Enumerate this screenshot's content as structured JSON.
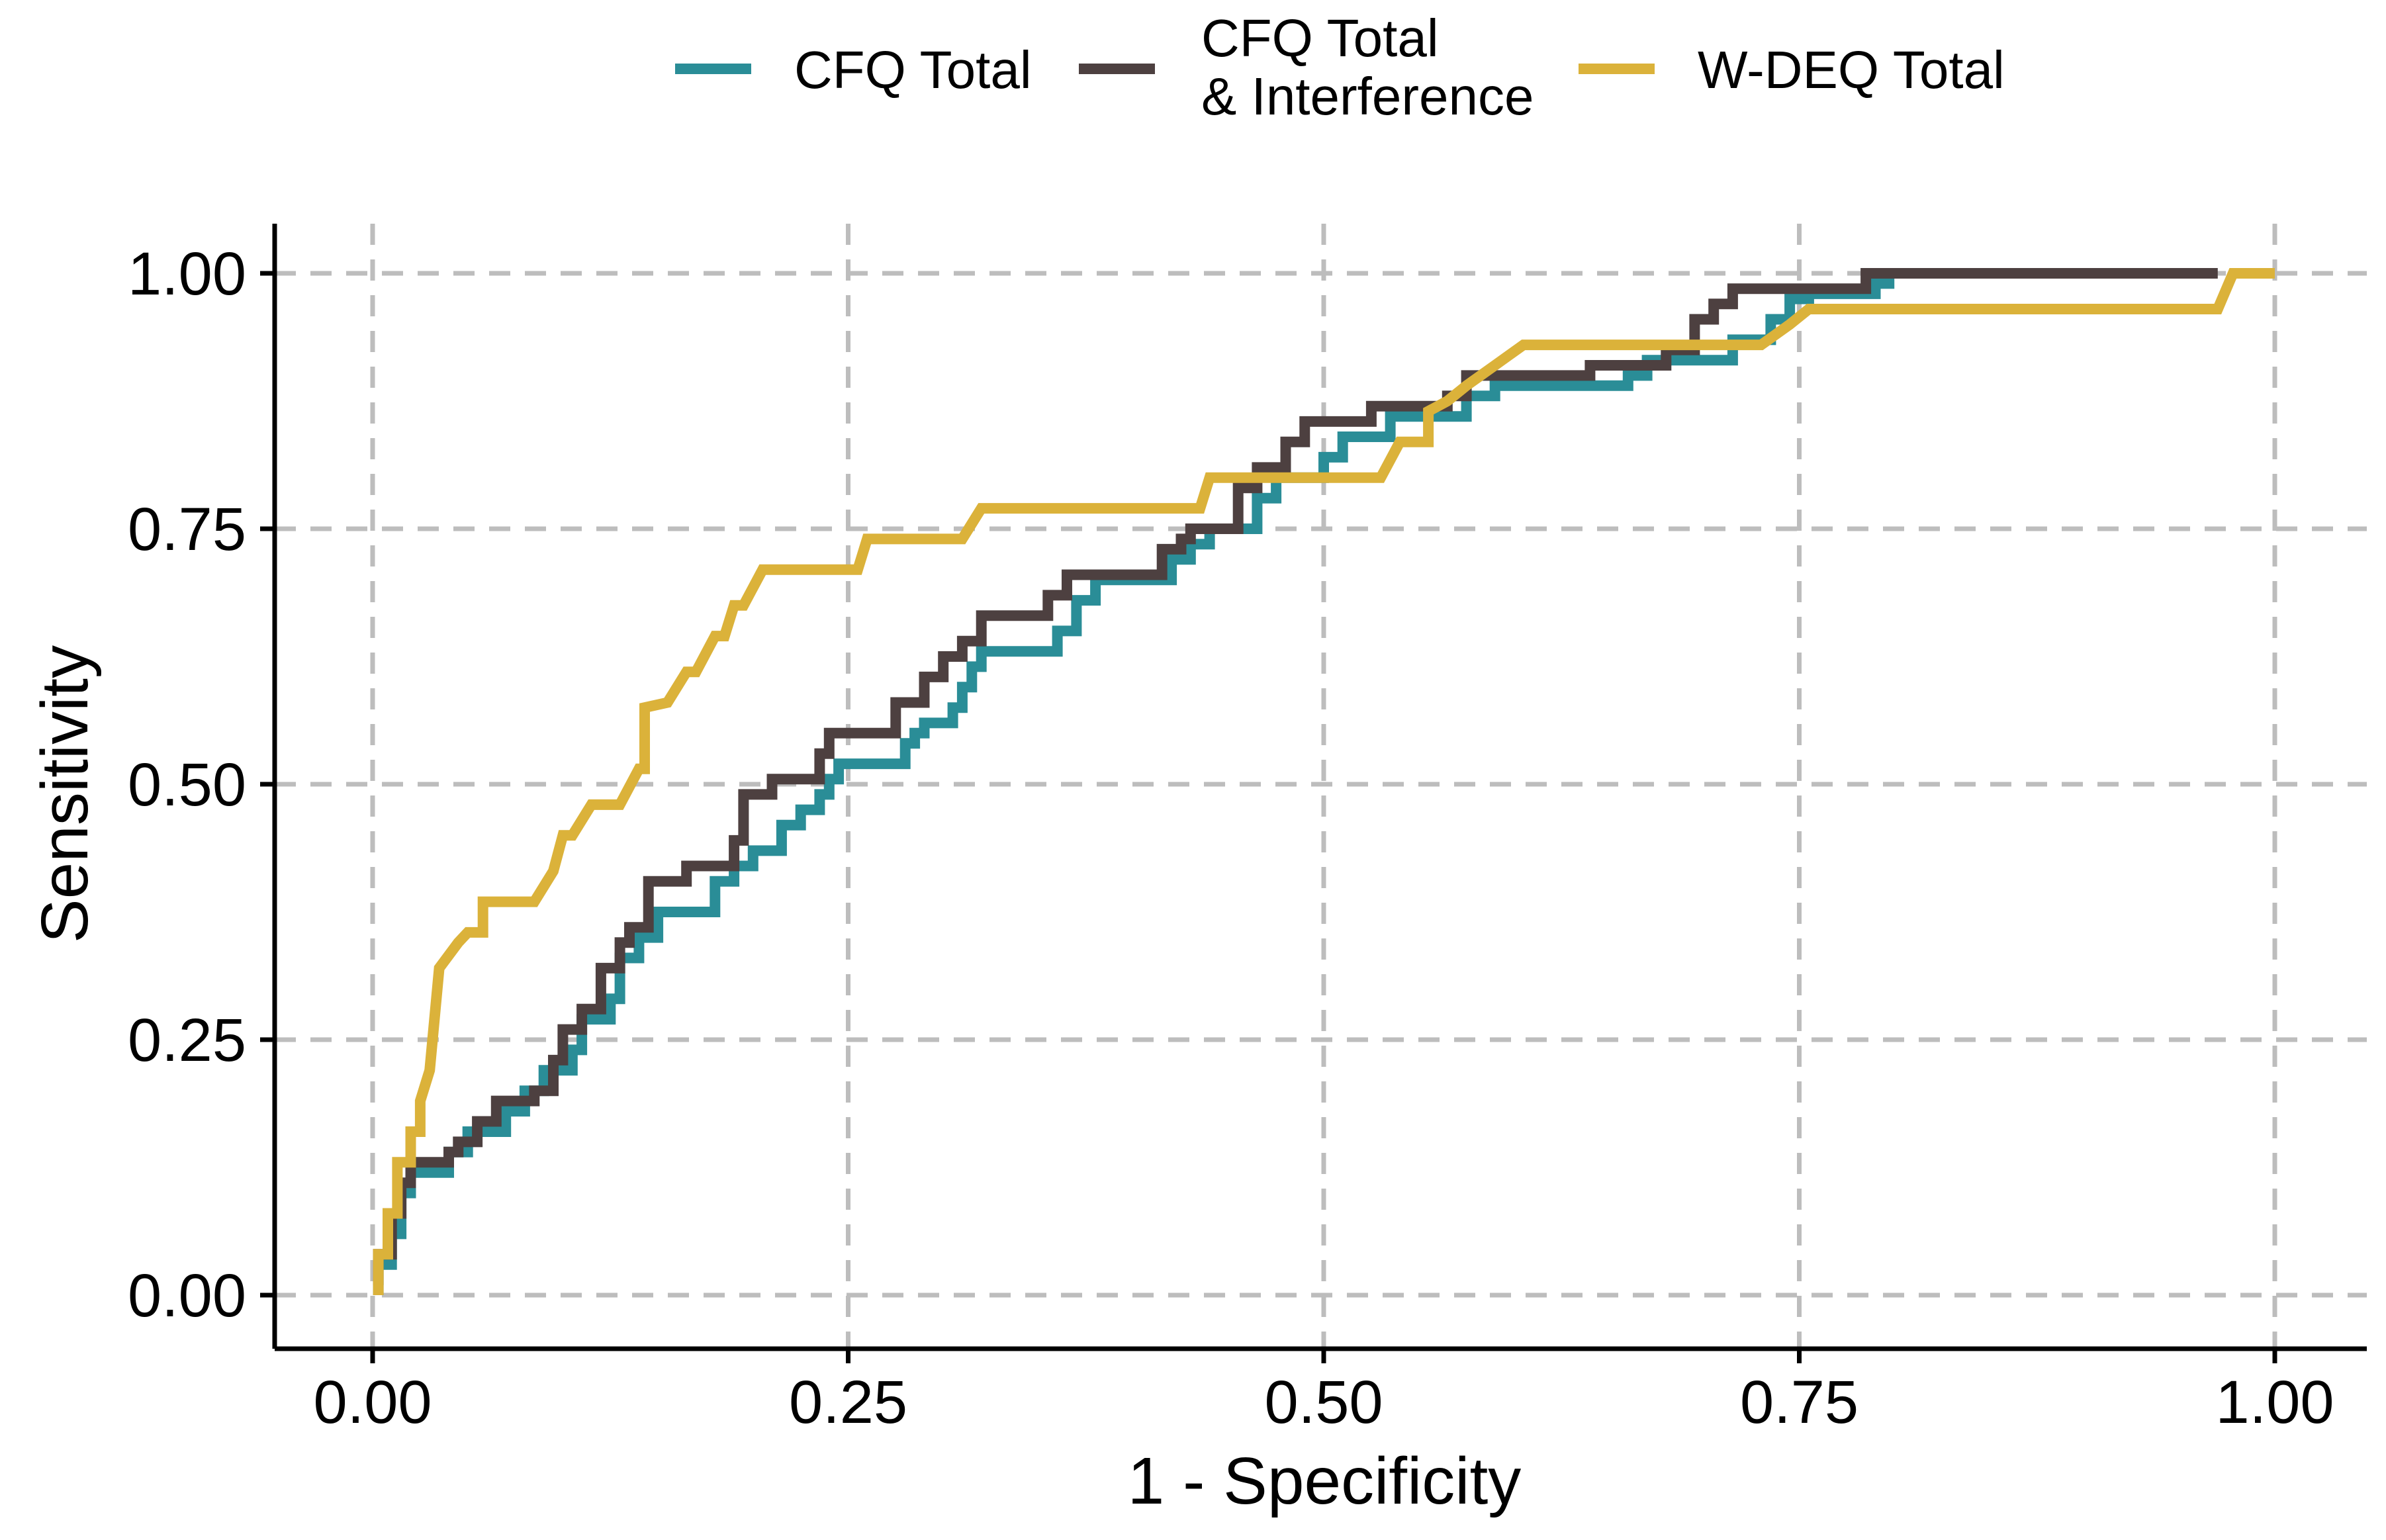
{
  "chart_data": {
    "type": "line",
    "title": "",
    "xlabel": "1 - Specificity",
    "ylabel": "Sensitivity",
    "xlim": [
      0,
      1
    ],
    "ylim": [
      0,
      1
    ],
    "x_ticks": [
      "0.00",
      "0.25",
      "0.50",
      "0.75",
      "1.00"
    ],
    "y_ticks": [
      "0.00",
      "0.25",
      "0.50",
      "0.75",
      "1.00"
    ],
    "grid": true,
    "legend_position": "top",
    "series": [
      {
        "name_lines": [
          "CFQ Total"
        ],
        "color": "#2a8d97",
        "points": [
          [
            0.003,
            0.0
          ],
          [
            0.003,
            0.03
          ],
          [
            0.01,
            0.03
          ],
          [
            0.01,
            0.06
          ],
          [
            0.015,
            0.06
          ],
          [
            0.015,
            0.1
          ],
          [
            0.02,
            0.1
          ],
          [
            0.02,
            0.12
          ],
          [
            0.04,
            0.12
          ],
          [
            0.04,
            0.14
          ],
          [
            0.05,
            0.14
          ],
          [
            0.05,
            0.16
          ],
          [
            0.07,
            0.16
          ],
          [
            0.07,
            0.18
          ],
          [
            0.08,
            0.18
          ],
          [
            0.08,
            0.2
          ],
          [
            0.09,
            0.2
          ],
          [
            0.09,
            0.22
          ],
          [
            0.105,
            0.22
          ],
          [
            0.105,
            0.24
          ],
          [
            0.11,
            0.24
          ],
          [
            0.11,
            0.27
          ],
          [
            0.125,
            0.27
          ],
          [
            0.125,
            0.29
          ],
          [
            0.13,
            0.29
          ],
          [
            0.13,
            0.33
          ],
          [
            0.14,
            0.33
          ],
          [
            0.14,
            0.35
          ],
          [
            0.15,
            0.35
          ],
          [
            0.15,
            0.375
          ],
          [
            0.18,
            0.375
          ],
          [
            0.18,
            0.405
          ],
          [
            0.19,
            0.405
          ],
          [
            0.19,
            0.42
          ],
          [
            0.2,
            0.42
          ],
          [
            0.2,
            0.435
          ],
          [
            0.215,
            0.435
          ],
          [
            0.215,
            0.46
          ],
          [
            0.225,
            0.46
          ],
          [
            0.225,
            0.475
          ],
          [
            0.235,
            0.475
          ],
          [
            0.235,
            0.49
          ],
          [
            0.24,
            0.49
          ],
          [
            0.24,
            0.505
          ],
          [
            0.245,
            0.505
          ],
          [
            0.245,
            0.52
          ],
          [
            0.28,
            0.52
          ],
          [
            0.28,
            0.54
          ],
          [
            0.285,
            0.54
          ],
          [
            0.285,
            0.55
          ],
          [
            0.29,
            0.55
          ],
          [
            0.29,
            0.56
          ],
          [
            0.305,
            0.56
          ],
          [
            0.305,
            0.575
          ],
          [
            0.31,
            0.575
          ],
          [
            0.31,
            0.595
          ],
          [
            0.315,
            0.595
          ],
          [
            0.315,
            0.615
          ],
          [
            0.32,
            0.615
          ],
          [
            0.32,
            0.63
          ],
          [
            0.36,
            0.63
          ],
          [
            0.36,
            0.65
          ],
          [
            0.37,
            0.65
          ],
          [
            0.37,
            0.68
          ],
          [
            0.38,
            0.68
          ],
          [
            0.38,
            0.7
          ],
          [
            0.42,
            0.7
          ],
          [
            0.42,
            0.72
          ],
          [
            0.43,
            0.72
          ],
          [
            0.43,
            0.735
          ],
          [
            0.44,
            0.735
          ],
          [
            0.44,
            0.75
          ],
          [
            0.465,
            0.75
          ],
          [
            0.465,
            0.78
          ],
          [
            0.475,
            0.78
          ],
          [
            0.475,
            0.8
          ],
          [
            0.5,
            0.8
          ],
          [
            0.5,
            0.82
          ],
          [
            0.51,
            0.82
          ],
          [
            0.51,
            0.84
          ],
          [
            0.535,
            0.84
          ],
          [
            0.535,
            0.86
          ],
          [
            0.575,
            0.86
          ],
          [
            0.575,
            0.88
          ],
          [
            0.59,
            0.88
          ],
          [
            0.59,
            0.89
          ],
          [
            0.66,
            0.89
          ],
          [
            0.66,
            0.9
          ],
          [
            0.67,
            0.9
          ],
          [
            0.67,
            0.915
          ],
          [
            0.715,
            0.915
          ],
          [
            0.715,
            0.935
          ],
          [
            0.735,
            0.935
          ],
          [
            0.735,
            0.955
          ],
          [
            0.745,
            0.955
          ],
          [
            0.745,
            0.975
          ],
          [
            0.755,
            0.975
          ],
          [
            0.755,
            0.98
          ],
          [
            0.79,
            0.98
          ],
          [
            0.79,
            0.99
          ],
          [
            0.8,
            0.99
          ]
        ]
      },
      {
        "name_lines": [
          "CFQ Total",
          "& Interference"
        ],
        "color": "#4d4040",
        "points": [
          [
            0.003,
            0.01
          ],
          [
            0.003,
            0.04
          ],
          [
            0.01,
            0.04
          ],
          [
            0.01,
            0.08
          ],
          [
            0.015,
            0.08
          ],
          [
            0.015,
            0.11
          ],
          [
            0.02,
            0.11
          ],
          [
            0.02,
            0.13
          ],
          [
            0.04,
            0.13
          ],
          [
            0.04,
            0.14
          ],
          [
            0.045,
            0.14
          ],
          [
            0.045,
            0.15
          ],
          [
            0.055,
            0.15
          ],
          [
            0.055,
            0.17
          ],
          [
            0.065,
            0.17
          ],
          [
            0.065,
            0.19
          ],
          [
            0.085,
            0.19
          ],
          [
            0.085,
            0.2
          ],
          [
            0.095,
            0.2
          ],
          [
            0.095,
            0.23
          ],
          [
            0.1,
            0.23
          ],
          [
            0.1,
            0.26
          ],
          [
            0.11,
            0.26
          ],
          [
            0.11,
            0.28
          ],
          [
            0.12,
            0.28
          ],
          [
            0.12,
            0.32
          ],
          [
            0.13,
            0.32
          ],
          [
            0.13,
            0.345
          ],
          [
            0.135,
            0.345
          ],
          [
            0.135,
            0.36
          ],
          [
            0.145,
            0.36
          ],
          [
            0.145,
            0.405
          ],
          [
            0.165,
            0.405
          ],
          [
            0.165,
            0.42
          ],
          [
            0.19,
            0.42
          ],
          [
            0.19,
            0.445
          ],
          [
            0.195,
            0.445
          ],
          [
            0.195,
            0.49
          ],
          [
            0.21,
            0.49
          ],
          [
            0.21,
            0.505
          ],
          [
            0.235,
            0.505
          ],
          [
            0.235,
            0.53
          ],
          [
            0.24,
            0.53
          ],
          [
            0.24,
            0.55
          ],
          [
            0.275,
            0.55
          ],
          [
            0.275,
            0.58
          ],
          [
            0.29,
            0.58
          ],
          [
            0.29,
            0.605
          ],
          [
            0.3,
            0.605
          ],
          [
            0.3,
            0.625
          ],
          [
            0.31,
            0.625
          ],
          [
            0.31,
            0.64
          ],
          [
            0.32,
            0.64
          ],
          [
            0.32,
            0.665
          ],
          [
            0.355,
            0.665
          ],
          [
            0.355,
            0.685
          ],
          [
            0.365,
            0.685
          ],
          [
            0.365,
            0.705
          ],
          [
            0.415,
            0.705
          ],
          [
            0.415,
            0.73
          ],
          [
            0.425,
            0.73
          ],
          [
            0.425,
            0.74
          ],
          [
            0.43,
            0.74
          ],
          [
            0.43,
            0.75
          ],
          [
            0.455,
            0.75
          ],
          [
            0.455,
            0.79
          ],
          [
            0.465,
            0.79
          ],
          [
            0.465,
            0.81
          ],
          [
            0.48,
            0.81
          ],
          [
            0.48,
            0.835
          ],
          [
            0.49,
            0.835
          ],
          [
            0.49,
            0.855
          ],
          [
            0.525,
            0.855
          ],
          [
            0.525,
            0.87
          ],
          [
            0.565,
            0.87
          ],
          [
            0.565,
            0.88
          ],
          [
            0.575,
            0.88
          ],
          [
            0.575,
            0.9
          ],
          [
            0.64,
            0.9
          ],
          [
            0.64,
            0.91
          ],
          [
            0.68,
            0.91
          ],
          [
            0.68,
            0.925
          ],
          [
            0.695,
            0.925
          ],
          [
            0.695,
            0.955
          ],
          [
            0.705,
            0.955
          ],
          [
            0.705,
            0.97
          ],
          [
            0.715,
            0.97
          ],
          [
            0.715,
            0.985
          ],
          [
            0.785,
            0.985
          ],
          [
            0.785,
            1.0
          ],
          [
            0.97,
            1.0
          ]
        ]
      },
      {
        "name_lines": [
          "W-DEQ Total"
        ],
        "color": "#dbb23a",
        "points": [
          [
            0.003,
            0.0
          ],
          [
            0.003,
            0.04
          ],
          [
            0.008,
            0.04
          ],
          [
            0.008,
            0.08
          ],
          [
            0.013,
            0.08
          ],
          [
            0.013,
            0.13
          ],
          [
            0.02,
            0.13
          ],
          [
            0.02,
            0.16
          ],
          [
            0.025,
            0.16
          ],
          [
            0.025,
            0.19
          ],
          [
            0.03,
            0.22
          ],
          [
            0.035,
            0.32
          ],
          [
            0.045,
            0.345
          ],
          [
            0.05,
            0.355
          ],
          [
            0.058,
            0.355
          ],
          [
            0.058,
            0.385
          ],
          [
            0.085,
            0.385
          ],
          [
            0.095,
            0.415
          ],
          [
            0.1,
            0.45
          ],
          [
            0.105,
            0.45
          ],
          [
            0.115,
            0.48
          ],
          [
            0.13,
            0.48
          ],
          [
            0.14,
            0.515
          ],
          [
            0.143,
            0.515
          ],
          [
            0.143,
            0.575
          ],
          [
            0.155,
            0.58
          ],
          [
            0.165,
            0.61
          ],
          [
            0.17,
            0.61
          ],
          [
            0.18,
            0.645
          ],
          [
            0.185,
            0.645
          ],
          [
            0.19,
            0.675
          ],
          [
            0.195,
            0.675
          ],
          [
            0.205,
            0.71
          ],
          [
            0.255,
            0.71
          ],
          [
            0.26,
            0.74
          ],
          [
            0.31,
            0.74
          ],
          [
            0.32,
            0.77
          ],
          [
            0.345,
            0.77
          ],
          [
            0.435,
            0.77
          ],
          [
            0.44,
            0.8
          ],
          [
            0.53,
            0.8
          ],
          [
            0.54,
            0.835
          ],
          [
            0.555,
            0.835
          ],
          [
            0.555,
            0.865
          ],
          [
            0.565,
            0.875
          ],
          [
            0.575,
            0.89
          ],
          [
            0.59,
            0.91
          ],
          [
            0.605,
            0.93
          ],
          [
            0.73,
            0.93
          ],
          [
            0.745,
            0.95
          ],
          [
            0.755,
            0.965
          ],
          [
            0.97,
            0.965
          ],
          [
            0.978,
            1.0
          ],
          [
            1.0,
            1.0
          ]
        ]
      }
    ]
  }
}
